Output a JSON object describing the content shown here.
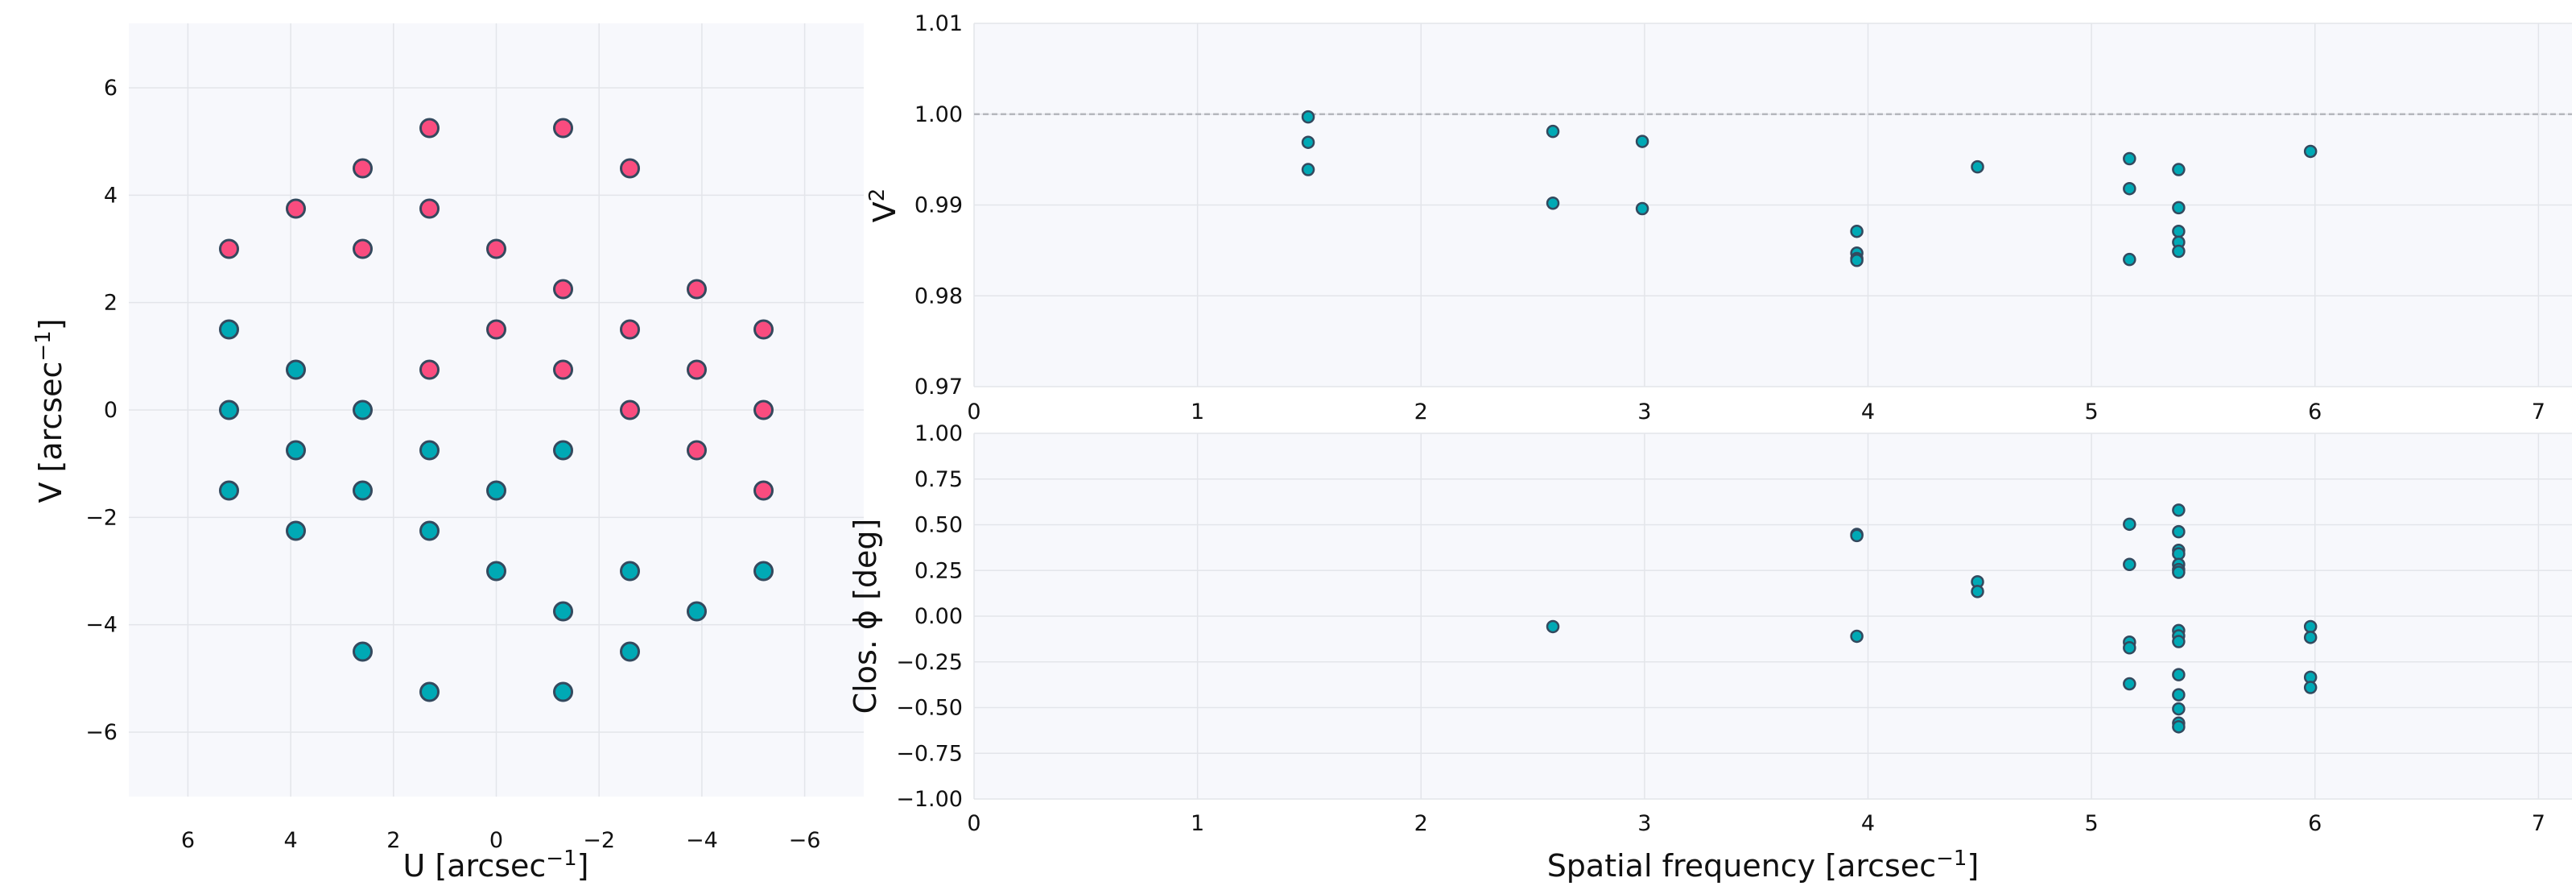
{
  "colors": {
    "pink": "#f94c7f",
    "teal": "#00a9b5",
    "edge": "#34495e",
    "background": "#f7f8fc",
    "ref_line": "#b5b7bd"
  },
  "chart_data": [
    {
      "type": "scatter",
      "name": "uv-coverage",
      "xlabel": {
        "text": "U [arcsec",
        "sup": "−1",
        "end": "]"
      },
      "ylabel": {
        "text": "V [arcsec",
        "sup": "−1",
        "end": "]"
      },
      "xlim": [
        7.15,
        -7.15
      ],
      "ylim": [
        -7.2,
        7.2
      ],
      "xticks": [
        6,
        4,
        2,
        0,
        -2,
        -4,
        -6
      ],
      "xtick_labels": [
        "6",
        "4",
        "2",
        "0",
        "−2",
        "−4",
        "−6"
      ],
      "yticks": [
        6,
        4,
        2,
        0,
        -2,
        -4,
        -6
      ],
      "ytick_labels": [
        "6",
        "4",
        "2",
        "0",
        "−2",
        "−4",
        "−6"
      ],
      "grid": true,
      "series": [
        {
          "name": "pink",
          "color": "#f94c7f",
          "points": [
            [
              1.3,
              5.25
            ],
            [
              -1.3,
              5.25
            ],
            [
              2.6,
              4.5
            ],
            [
              -2.6,
              4.5
            ],
            [
              3.9,
              3.75
            ],
            [
              1.3,
              3.75
            ],
            [
              5.2,
              3.0
            ],
            [
              2.6,
              3.0
            ],
            [
              0,
              3.0
            ],
            [
              -1.3,
              2.25
            ],
            [
              -3.9,
              2.25
            ],
            [
              0,
              1.5
            ],
            [
              -2.6,
              1.5
            ],
            [
              -5.2,
              1.5
            ],
            [
              1.3,
              0.75
            ],
            [
              -1.3,
              0.75
            ],
            [
              -3.9,
              0.75
            ],
            [
              -2.6,
              0
            ],
            [
              -5.2,
              0
            ],
            [
              -3.9,
              -0.75
            ],
            [
              -5.2,
              -1.5
            ]
          ]
        },
        {
          "name": "teal",
          "color": "#00a9b5",
          "points": [
            [
              -1.3,
              -5.25
            ],
            [
              1.3,
              -5.25
            ],
            [
              -2.6,
              -4.5
            ],
            [
              2.6,
              -4.5
            ],
            [
              -3.9,
              -3.75
            ],
            [
              -1.3,
              -3.75
            ],
            [
              -5.2,
              -3.0
            ],
            [
              -2.6,
              -3.0
            ],
            [
              0,
              -3.0
            ],
            [
              1.3,
              -2.25
            ],
            [
              3.9,
              -2.25
            ],
            [
              0,
              -1.5
            ],
            [
              2.6,
              -1.5
            ],
            [
              5.2,
              -1.5
            ],
            [
              -1.3,
              -0.75
            ],
            [
              1.3,
              -0.75
            ],
            [
              3.9,
              -0.75
            ],
            [
              2.6,
              0
            ],
            [
              5.2,
              0
            ],
            [
              3.9,
              0.75
            ],
            [
              5.2,
              1.5
            ]
          ]
        }
      ]
    },
    {
      "type": "scatter",
      "name": "squared-visibility",
      "ylabel": {
        "text": "V",
        "sup": "2",
        "end": ""
      },
      "xlim": [
        0,
        7.15
      ],
      "ylim": [
        0.97,
        1.01
      ],
      "xticks": [
        0,
        1,
        2,
        3,
        4,
        5,
        6,
        7
      ],
      "xtick_labels": [
        "0",
        "1",
        "2",
        "3",
        "4",
        "5",
        "6",
        "7"
      ],
      "yticks": [
        0.97,
        0.98,
        0.99,
        1.0,
        1.01
      ],
      "ytick_labels": [
        "0.97",
        "0.98",
        "0.99",
        "1.00",
        "1.01"
      ],
      "reference_line": 1.0,
      "grid": true,
      "points": [
        [
          1.495,
          0.9997
        ],
        [
          1.495,
          0.9969
        ],
        [
          1.495,
          0.9939
        ],
        [
          2.59,
          0.9981
        ],
        [
          2.59,
          0.9902
        ],
        [
          2.99,
          0.997
        ],
        [
          2.99,
          0.9896
        ],
        [
          3.95,
          0.9871
        ],
        [
          3.95,
          0.9847
        ],
        [
          3.95,
          0.9841
        ],
        [
          3.95,
          0.9839
        ],
        [
          4.49,
          0.9942
        ],
        [
          5.17,
          0.9951
        ],
        [
          5.17,
          0.9918
        ],
        [
          5.17,
          0.984
        ],
        [
          5.39,
          0.9939
        ],
        [
          5.39,
          0.9897
        ],
        [
          5.39,
          0.9871
        ],
        [
          5.39,
          0.9859
        ],
        [
          5.39,
          0.9849
        ],
        [
          5.98,
          0.9959
        ]
      ]
    },
    {
      "type": "scatter",
      "name": "closure-phase",
      "xlabel": {
        "text": "Spatial frequency [arcsec",
        "sup": "−1",
        "end": "]"
      },
      "ylabel": {
        "text": "Clos. ϕ [deg]",
        "sup": "",
        "end": ""
      },
      "xlim": [
        0,
        7.15
      ],
      "ylim": [
        -1.0,
        1.0
      ],
      "xticks": [
        0,
        1,
        2,
        3,
        4,
        5,
        6,
        7
      ],
      "xtick_labels": [
        "0",
        "1",
        "2",
        "3",
        "4",
        "5",
        "6",
        "7"
      ],
      "yticks": [
        -1.0,
        -0.75,
        -0.5,
        -0.25,
        0,
        0.25,
        0.5,
        0.75,
        1.0
      ],
      "ytick_labels": [
        "−1.00",
        "−0.75",
        "−0.50",
        "−0.25",
        "0.00",
        "0.25",
        "0.50",
        "0.75",
        "1.00"
      ],
      "grid": true,
      "points": [
        [
          2.59,
          -0.057
        ],
        [
          3.95,
          0.447
        ],
        [
          3.95,
          0.441
        ],
        [
          3.95,
          -0.11
        ],
        [
          4.49,
          0.188
        ],
        [
          4.49,
          0.135
        ],
        [
          5.17,
          0.503
        ],
        [
          5.17,
          0.283
        ],
        [
          5.17,
          -0.142
        ],
        [
          5.17,
          -0.173
        ],
        [
          5.17,
          -0.37
        ],
        [
          5.39,
          0.58
        ],
        [
          5.39,
          0.462
        ],
        [
          5.39,
          0.36
        ],
        [
          5.39,
          0.341
        ],
        [
          5.39,
          0.283
        ],
        [
          5.39,
          0.255
        ],
        [
          5.39,
          0.24
        ],
        [
          5.39,
          -0.079
        ],
        [
          5.39,
          -0.108
        ],
        [
          5.39,
          -0.139
        ],
        [
          5.39,
          -0.32
        ],
        [
          5.39,
          -0.43
        ],
        [
          5.39,
          -0.507
        ],
        [
          5.39,
          -0.585
        ],
        [
          5.39,
          -0.605
        ],
        [
          5.98,
          -0.057
        ],
        [
          5.98,
          -0.116
        ],
        [
          5.98,
          -0.334
        ],
        [
          5.98,
          -0.39
        ]
      ]
    }
  ]
}
